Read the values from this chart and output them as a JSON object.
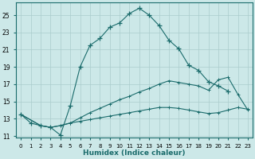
{
  "xlabel": "Humidex (Indice chaleur)",
  "background_color": "#cce8e8",
  "grid_color": "#aacccc",
  "line_color": "#1a6b6b",
  "xlim_min": -0.5,
  "xlim_max": 23.5,
  "ylim_min": 10.8,
  "ylim_max": 26.5,
  "xticks": [
    0,
    1,
    2,
    3,
    4,
    5,
    6,
    7,
    8,
    9,
    10,
    11,
    12,
    13,
    14,
    15,
    16,
    17,
    18,
    19,
    20,
    21,
    22,
    23
  ],
  "yticks": [
    11,
    13,
    15,
    17,
    19,
    21,
    23,
    25
  ],
  "curve1_x": [
    0,
    1,
    2,
    3,
    4,
    5,
    6,
    7,
    8,
    9,
    10,
    11,
    12,
    13,
    14,
    15,
    16,
    17,
    18,
    19,
    20,
    21
  ],
  "curve1_y": [
    13.5,
    12.5,
    12.2,
    12.0,
    11.1,
    14.5,
    19.0,
    21.5,
    22.3,
    23.6,
    24.1,
    25.2,
    25.8,
    25.0,
    23.8,
    22.1,
    21.1,
    19.2,
    18.6,
    17.3,
    16.8,
    16.2
  ],
  "curve2_x": [
    0,
    2,
    3,
    4,
    5,
    6,
    7,
    8,
    9,
    10,
    11,
    12,
    13,
    14,
    15,
    16,
    17,
    18,
    19,
    20,
    21,
    22,
    23
  ],
  "curve2_y": [
    13.5,
    12.2,
    12.0,
    12.2,
    12.5,
    13.1,
    13.7,
    14.2,
    14.7,
    15.2,
    15.6,
    16.1,
    16.5,
    17.0,
    17.4,
    17.2,
    17.0,
    16.8,
    16.3,
    17.5,
    17.8,
    15.8,
    14.0
  ],
  "curve3_x": [
    0,
    2,
    3,
    4,
    5,
    6,
    7,
    8,
    9,
    10,
    11,
    12,
    13,
    14,
    15,
    16,
    17,
    18,
    19,
    20,
    21,
    22,
    23
  ],
  "curve3_y": [
    13.5,
    12.2,
    12.0,
    12.2,
    12.5,
    12.7,
    12.9,
    13.1,
    13.3,
    13.5,
    13.7,
    13.9,
    14.1,
    14.3,
    14.3,
    14.2,
    14.0,
    13.8,
    13.6,
    13.7,
    14.0,
    14.3,
    14.1
  ]
}
